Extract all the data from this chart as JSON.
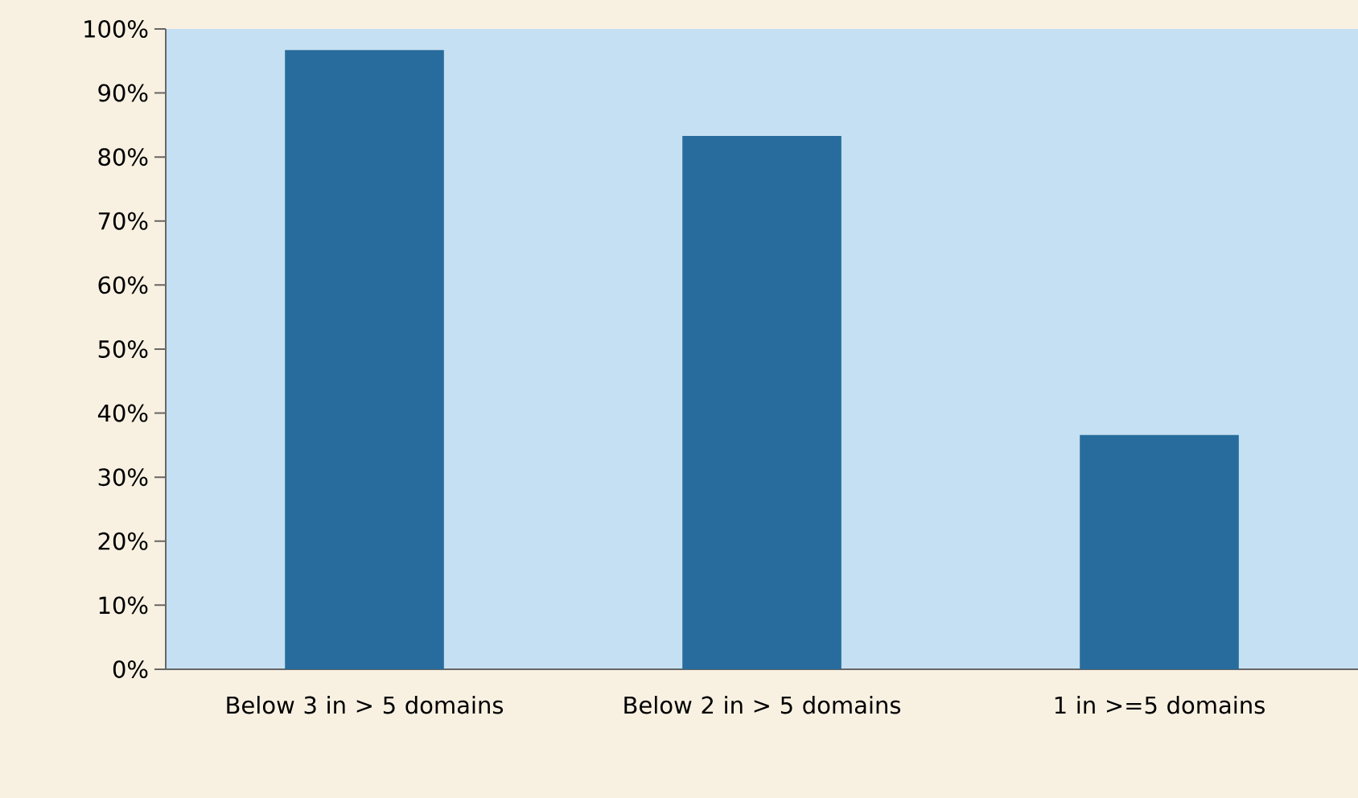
{
  "chart_data": {
    "type": "bar",
    "categories": [
      "Below 3 in > 5 domains",
      "Below 2 in > 5 domains",
      "1 in >=5 domains"
    ],
    "values": [
      96.7,
      83.3,
      36.6
    ],
    "color": "#276c9c",
    "ylim": [
      0,
      100
    ],
    "yticks": [
      {
        "value": 0,
        "label": "0%"
      },
      {
        "value": 10,
        "label": "10%"
      },
      {
        "value": 20,
        "label": "20%"
      },
      {
        "value": 30,
        "label": "30%"
      },
      {
        "value": 40,
        "label": "40%"
      },
      {
        "value": 50,
        "label": "50%"
      },
      {
        "value": 60,
        "label": "60%"
      },
      {
        "value": 70,
        "label": "70%"
      },
      {
        "value": 80,
        "label": "80%"
      },
      {
        "value": 90,
        "label": "90%"
      },
      {
        "value": 100,
        "label": "100%"
      }
    ],
    "grid": false
  }
}
